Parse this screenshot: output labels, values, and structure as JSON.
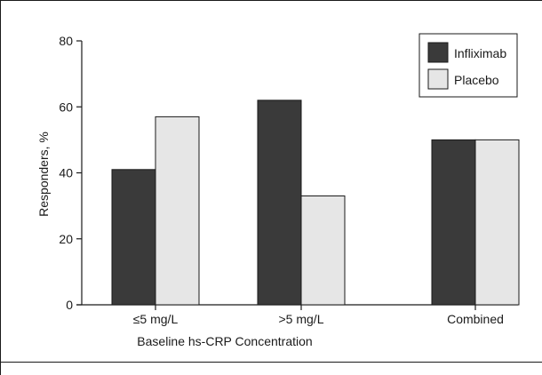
{
  "chart_data": {
    "type": "bar",
    "title": "",
    "xlabel": "Baseline hs-CRP Concentration",
    "ylabel": "Responders, %",
    "ylim": [
      0,
      80
    ],
    "yticks": [
      0,
      20,
      40,
      60,
      80
    ],
    "grid": false,
    "legend_position": "top-right",
    "categories": [
      "≤5 mg/L",
      ">5 mg/L",
      "Combined"
    ],
    "series": [
      {
        "name": "Infliximab",
        "values": [
          41,
          62,
          50
        ],
        "color": "#3a3a3a"
      },
      {
        "name": "Placebo",
        "values": [
          57,
          33,
          50
        ],
        "color": "#e6e6e6"
      }
    ]
  }
}
